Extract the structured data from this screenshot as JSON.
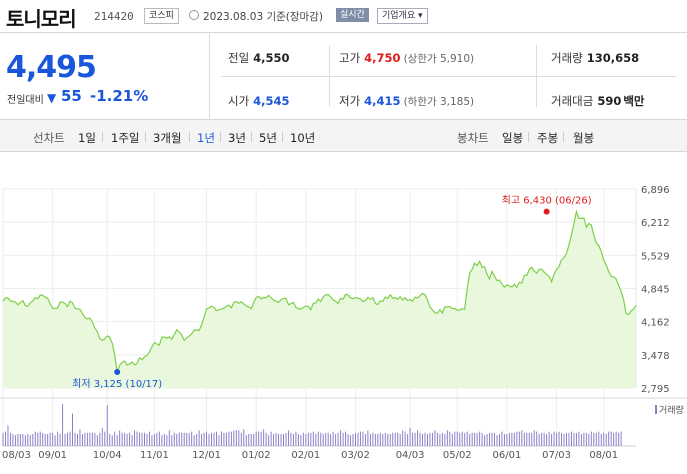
{
  "header": {
    "name": "토니모리",
    "code": "214420",
    "market_badge": "코스피",
    "date": "2023.08.03 기준(장마감)",
    "realtime_badge": "실시간",
    "company_info": "기업개요"
  },
  "quote": {
    "price": "4,495",
    "change_label": "전일대비",
    "change_arrow": "▼",
    "change_value": "55",
    "change_pct": "-1.21%",
    "stats": {
      "prev_close": {
        "label": "전일",
        "value": "4,550"
      },
      "high": {
        "label": "고가",
        "value": "4,750",
        "sub": "(상한가 5,910)"
      },
      "volume": {
        "label": "거래량",
        "value": "130,658"
      },
      "open": {
        "label": "시가",
        "value": "4,545"
      },
      "low": {
        "label": "저가",
        "value": "4,415",
        "sub": "(하한가 3,185)"
      },
      "amount": {
        "label": "거래대금",
        "value": "590",
        "unit": "백만"
      }
    }
  },
  "tabs": {
    "line_label": "선차트",
    "line_periods": [
      "1일",
      "1주일",
      "3개월",
      "1년",
      "3년",
      "5년",
      "10년"
    ],
    "active_period": "1년",
    "candle_label": "봉차트",
    "candle_periods": [
      "일봉",
      "주봉",
      "월봉"
    ]
  },
  "colors": {
    "accent_blue": "#1a56db",
    "up_red": "#e01b1b",
    "line_green": "#7dcf4a",
    "area_green": "#e9f8dd",
    "volume_purple": "#8c7fc9"
  },
  "chart_data": {
    "type": "area",
    "y_ticks": [
      "6,896",
      "6,212",
      "5,529",
      "4,845",
      "4,162",
      "3,478",
      "2,795"
    ],
    "ylim": [
      2795,
      6896
    ],
    "x_ticks": [
      "08/03",
      "09/01",
      "10/04",
      "11/01",
      "12/01",
      "01/02",
      "02/01",
      "03/02",
      "04/03",
      "05/02",
      "06/01",
      "07/03",
      "08/01"
    ],
    "x_tick_index": [
      0,
      20,
      42,
      61,
      82,
      102,
      122,
      142,
      164,
      183,
      203,
      223,
      242
    ],
    "high_label": "최고 6,430 (06/26)",
    "high": {
      "index": 219,
      "value": 6430
    },
    "low_label": "최저 3,125 (10/17)",
    "low": {
      "index": 46,
      "value": 3125
    },
    "volume_label": "거래량",
    "grid": true,
    "prices": [
      4585,
      4652,
      4650,
      4586,
      4579,
      4568,
      4509,
      4562,
      4596,
      4495,
      4478,
      4551,
      4593,
      4656,
      4637,
      4712,
      4705,
      4667,
      4639,
      4528,
      4433,
      4440,
      4436,
      4570,
      4561,
      4536,
      4472,
      4585,
      4550,
      4438,
      4428,
      4414,
      4332,
      4249,
      4217,
      4233,
      4157,
      4031,
      3959,
      3808,
      3778,
      3806,
      3866,
      3844,
      3723,
      3476,
      3125,
      3262,
      3327,
      3352,
      3263,
      3295,
      3333,
      3270,
      3300,
      3417,
      3379,
      3437,
      3469,
      3542,
      3644,
      3729,
      3700,
      3682,
      3842,
      3846,
      3821,
      3849,
      3797,
      3899,
      3995,
      3950,
      3887,
      3780,
      3824,
      3868,
      3909,
      3991,
      3993,
      3979,
      4097,
      4262,
      4429,
      4445,
      4478,
      4460,
      4387,
      4407,
      4422,
      4439,
      4482,
      4501,
      4448,
      4557,
      4576,
      4540,
      4572,
      4528,
      4483,
      4466,
      4430,
      4556,
      4662,
      4684,
      4627,
      4659,
      4656,
      4704,
      4655,
      4601,
      4585,
      4559,
      4615,
      4644,
      4643,
      4510,
      4535,
      4562,
      4454,
      4434,
      4418,
      4456,
      4481,
      4479,
      4409,
      4540,
      4545,
      4626,
      4578,
      4674,
      4716,
      4719,
      4668,
      4612,
      4583,
      4536,
      4643,
      4626,
      4726,
      4714,
      4656,
      4638,
      4651,
      4653,
      4629,
      4576,
      4598,
      4665,
      4623,
      4658,
      4536,
      4516,
      4589,
      4579,
      4670,
      4644,
      4718,
      4646,
      4651,
      4627,
      4674,
      4609,
      4655,
      4601,
      4614,
      4583,
      4668,
      4652,
      4697,
      4744,
      4717,
      4608,
      4465,
      4404,
      4347,
      4336,
      4408,
      4342,
      4469,
      4464,
      4472,
      4434,
      4431,
      4401,
      4403,
      4430,
      4416,
      4848,
      5162,
      5244,
      5367,
      5321,
      5404,
      5284,
      5292,
      5133,
      5046,
      5198,
      5102,
      5009,
      5020,
      4935,
      4874,
      4921,
      4894,
      4876,
      4935,
      4873,
      4972,
      4956,
      5119,
      5115,
      5237,
      5282,
      5201,
      5164,
      5242,
      5244,
      5183,
      5135,
      5097,
      4986,
      5142,
      5242,
      5296,
      5436,
      5481,
      5568,
      5745,
      5952,
      6180,
      6430,
      6291,
      6290,
      6298,
      6108,
      6186,
      6156,
      5948,
      5779,
      5731,
      5610,
      5436,
      5330,
      5196,
      5093,
      5084,
      5039,
      4912,
      4785,
      4618,
      4326,
      4311,
      4384,
      4422,
      4495
    ],
    "volumes": [
      11,
      12,
      17,
      11,
      10,
      9,
      10,
      10,
      10,
      9,
      10,
      9,
      10,
      12,
      11,
      12,
      11,
      10,
      10,
      11,
      11,
      9,
      12,
      10,
      35,
      10,
      11,
      12,
      27,
      11,
      10,
      14,
      10,
      11,
      11,
      11,
      11,
      11,
      9,
      11,
      15,
      12,
      34,
      10,
      9,
      12,
      9,
      13,
      11,
      11,
      10,
      11,
      9,
      13,
      12,
      11,
      11,
      11,
      10,
      12,
      9,
      10,
      11,
      12,
      9,
      10,
      9,
      13,
      9,
      11,
      10,
      11,
      11,
      11,
      11,
      11,
      12,
      9,
      10,
      13,
      10,
      11,
      12,
      10,
      11,
      11,
      12,
      9,
      12,
      11,
      11,
      12,
      12,
      13,
      13,
      13,
      11,
      14,
      9,
      10,
      10,
      10,
      12,
      12,
      12,
      14,
      11,
      9,
      12,
      10,
      11,
      10,
      10,
      10,
      11,
      13,
      11,
      10,
      12,
      10,
      9,
      11,
      10,
      11,
      11,
      12,
      10,
      12,
      11,
      10,
      11,
      11,
      10,
      12,
      10,
      11,
      13,
      11,
      12,
      10,
      9,
      10,
      11,
      11,
      12,
      12,
      10,
      13,
      10,
      11,
      10,
      10,
      11,
      10,
      11,
      10,
      10,
      11,
      11,
      11,
      10,
      13,
      12,
      10,
      15,
      11,
      11,
      13,
      11,
      10,
      11,
      10,
      11,
      11,
      13,
      11,
      10,
      11,
      10,
      13,
      12,
      10,
      12,
      12,
      11,
      12,
      11,
      12,
      10,
      11,
      11,
      11,
      12,
      11,
      9,
      10,
      11,
      11,
      11,
      9,
      10,
      12,
      10,
      10,
      11,
      11,
      11,
      12,
      12,
      13,
      11,
      11,
      11,
      11,
      13,
      12,
      10,
      11,
      11,
      10,
      12,
      10,
      12,
      11,
      12,
      11,
      10,
      11,
      11,
      12,
      11,
      11,
      12,
      10,
      11,
      11,
      10,
      12,
      11,
      11,
      12,
      10,
      11,
      10,
      12,
      12,
      11,
      12,
      11,
      12
    ]
  }
}
